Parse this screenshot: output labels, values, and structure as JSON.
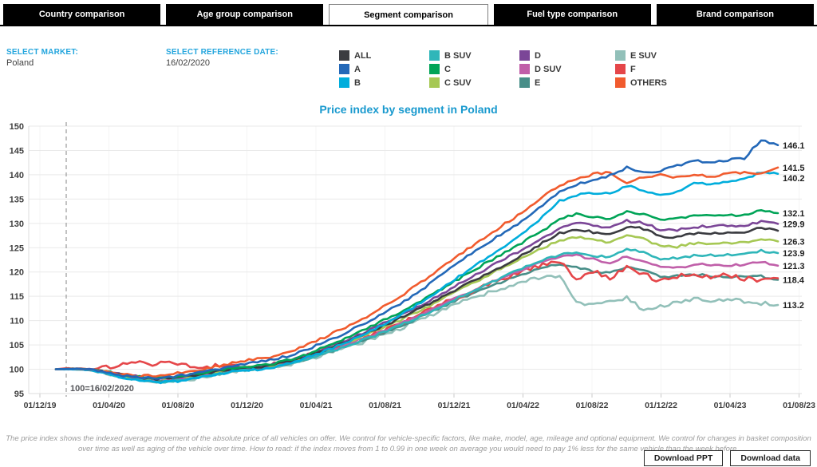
{
  "tabs": [
    {
      "label": "Country comparison",
      "active": false
    },
    {
      "label": "Age group comparison",
      "active": false
    },
    {
      "label": "Segment comparison",
      "active": true
    },
    {
      "label": "Fuel type comparison",
      "active": false
    },
    {
      "label": "Brand comparison",
      "active": false
    }
  ],
  "filters": {
    "market_label": "SELECT MARKET:",
    "market_value": "Poland",
    "date_label": "SELECT REFERENCE DATE:",
    "date_value": "16/02/2020"
  },
  "title": "Price index by segment in Poland",
  "chart_data": {
    "type": "line",
    "title": "Price index by segment in Poland",
    "x_tick_labels": [
      "01/12/19",
      "01/04/20",
      "01/08/20",
      "01/12/20",
      "01/04/21",
      "01/08/21",
      "01/12/21",
      "01/04/22",
      "01/08/22",
      "01/12/22",
      "01/04/23",
      "01/08/23"
    ],
    "y_ticks": [
      95,
      100,
      105,
      110,
      115,
      120,
      125,
      130,
      135,
      140,
      145,
      150
    ],
    "ylim": [
      95,
      150
    ],
    "grid": true,
    "legend_position": "top",
    "series_sampling": "monthly, Dec-2019 to Jul-2023 (values read from chart)",
    "reference_line": {
      "label": "100=16/02/2020",
      "value": 100,
      "date": "16/02/2020"
    },
    "end_labels_visible": [
      "146.1",
      "141.5",
      "140.2",
      "132.1",
      "129.9",
      "126.3",
      "123.9",
      "121.3",
      "118.4",
      "113.2"
    ],
    "draw_order": [
      "E SUV",
      "E",
      "F",
      "D SUV",
      "B SUV",
      "C SUV",
      "D",
      "ALL",
      "C",
      "B",
      "OTHERS",
      "A"
    ],
    "series": [
      {
        "name": "ALL",
        "color": "#3b3c41",
        "end_label": null,
        "values": [
          100,
          100.1,
          100,
          99.4,
          98.8,
          98.3,
          98,
          98.2,
          98.6,
          99.2,
          99.8,
          100.3,
          100.4,
          100.9,
          101.7,
          102.7,
          104,
          105.3,
          106.7,
          108.2,
          109.7,
          111.3,
          113,
          114.8,
          116.6,
          118.4,
          120.2,
          122,
          123.8,
          126,
          128,
          128.8,
          128.2,
          127.7,
          129.3,
          128.9,
          127.3,
          127.2,
          127.9,
          128,
          128.1,
          128.3,
          129.2,
          128.5
        ]
      },
      {
        "name": "A",
        "color": "#2368b8",
        "end_label": "146.1",
        "values": [
          100,
          100.1,
          100,
          99.4,
          98.7,
          98.3,
          98.2,
          98.5,
          99,
          99.6,
          100.3,
          101,
          101.4,
          102,
          102.9,
          104.1,
          105.6,
          107.1,
          108.7,
          110.5,
          112.4,
          114.5,
          116.9,
          119.4,
          122,
          124.3,
          126.6,
          128.8,
          131,
          133.8,
          136.5,
          138,
          139,
          139.8,
          141.5,
          140.5,
          140.8,
          141.9,
          142.8,
          142.6,
          143,
          143.4,
          147.2,
          146.1
        ]
      },
      {
        "name": "B",
        "color": "#00addc",
        "end_label": "140.2",
        "values": [
          100,
          100,
          99.9,
          99.2,
          98.3,
          97.7,
          97.3,
          97.5,
          97.9,
          98.5,
          99.2,
          99.8,
          100,
          100.5,
          101.3,
          102.4,
          103.7,
          105.1,
          106.6,
          108.3,
          110.1,
          112.1,
          114.3,
          116.6,
          119,
          121.3,
          123.7,
          126,
          128.3,
          131.5,
          134.6,
          135.8,
          136.3,
          136,
          137.8,
          136.5,
          135.9,
          136.6,
          138.3,
          138.1,
          138.4,
          139,
          140.6,
          140.2
        ]
      },
      {
        "name": "B SUV",
        "color": "#2fb6b9",
        "end_label": "123.9",
        "values": [
          100,
          100,
          99.9,
          99.2,
          98.4,
          97.8,
          97.4,
          97.6,
          98,
          98.6,
          99.3,
          99.9,
          100.1,
          100.5,
          101.2,
          102.1,
          103.2,
          104.4,
          105.6,
          106.9,
          108.3,
          109.8,
          111.4,
          113,
          114.7,
          116.3,
          118,
          119.6,
          121.2,
          122.5,
          123.5,
          124,
          123.4,
          123,
          124.8,
          124,
          122.7,
          122.8,
          123.4,
          123.4,
          123.5,
          123.6,
          124.4,
          123.9
        ]
      },
      {
        "name": "C",
        "color": "#00a457",
        "end_label": "132.1",
        "values": [
          100,
          100.1,
          100,
          99.5,
          98.9,
          98.4,
          98.2,
          98.4,
          98.8,
          99.4,
          100,
          100.5,
          100.7,
          101.2,
          102,
          103.1,
          104.5,
          106,
          107.5,
          109.2,
          110.9,
          112.7,
          114.6,
          116.6,
          118.6,
          120.6,
          122.6,
          124.6,
          126.5,
          128.6,
          130.8,
          132,
          131.4,
          130.9,
          132.4,
          132,
          130.8,
          130.9,
          131.5,
          131.5,
          131.6,
          131.8,
          132.8,
          132.1
        ]
      },
      {
        "name": "C SUV",
        "color": "#a6c854",
        "end_label": "126.3",
        "values": [
          100,
          100.1,
          100,
          99.5,
          98.8,
          98.3,
          98.1,
          98.3,
          98.7,
          99.2,
          99.8,
          100.3,
          100.5,
          100.9,
          101.6,
          102.6,
          103.8,
          105.1,
          106.4,
          107.8,
          109.3,
          110.9,
          112.6,
          114.4,
          116.2,
          118,
          119.8,
          121.6,
          123.3,
          125,
          126.4,
          127.2,
          126.6,
          126,
          127.4,
          126.9,
          125.3,
          125.2,
          125.9,
          126,
          126,
          126.1,
          126.9,
          126.3
        ]
      },
      {
        "name": "D",
        "color": "#7b4697",
        "end_label": "129.9",
        "values": [
          100,
          100.1,
          100,
          99.5,
          98.9,
          98.4,
          98.1,
          98.3,
          98.7,
          99.3,
          99.9,
          100.4,
          100.5,
          101,
          101.8,
          102.9,
          104.2,
          105.6,
          107,
          108.6,
          110.2,
          111.9,
          113.7,
          115.6,
          117.5,
          119.4,
          121.3,
          123.2,
          125,
          127,
          129,
          130.2,
          129.6,
          129,
          130.5,
          130.1,
          128.7,
          128.6,
          129.3,
          129.4,
          129.5,
          129.6,
          130.4,
          129.9
        ]
      },
      {
        "name": "D SUV",
        "color": "#c05fa9",
        "end_label": "121.3",
        "values": [
          100,
          100,
          99.9,
          99.3,
          98.6,
          98.1,
          97.9,
          98.1,
          98.5,
          99,
          99.7,
          100.2,
          100.4,
          100.8,
          101.5,
          102.4,
          103.5,
          104.7,
          105.9,
          107.2,
          108.6,
          110.1,
          111.7,
          113.3,
          115,
          116.5,
          118,
          119.5,
          120.9,
          122.1,
          123.1,
          123.4,
          122.6,
          122,
          123.2,
          122.4,
          120.9,
          120.8,
          121.5,
          121.5,
          121.4,
          121.5,
          122.1,
          121.3
        ]
      },
      {
        "name": "E",
        "color": "#478e88",
        "end_label": "118.4",
        "values": [
          100,
          100,
          99.9,
          99.2,
          98.5,
          97.9,
          97.6,
          97.8,
          98.2,
          98.8,
          99.4,
          100,
          100.2,
          100.6,
          101.3,
          102.2,
          103.3,
          104.4,
          105.6,
          106.8,
          108.2,
          109.6,
          111.2,
          112.8,
          114.4,
          115.8,
          117.2,
          118.6,
          119.8,
          120.8,
          121.6,
          121,
          120.2,
          119.8,
          121.2,
          120.3,
          119,
          119.2,
          119.6,
          119.2,
          119,
          118.9,
          119.1,
          118.4
        ]
      },
      {
        "name": "E SUV",
        "color": "#92c0b9",
        "end_label": "113.2",
        "values": [
          100,
          100,
          99.9,
          99.1,
          98.2,
          97.6,
          97.3,
          97.5,
          97.9,
          98.5,
          99.2,
          99.8,
          100,
          100.4,
          101.1,
          102,
          103,
          104.1,
          105.2,
          106.4,
          107.7,
          109.1,
          110.6,
          112.1,
          113.6,
          114.8,
          116,
          117.2,
          118.2,
          118.9,
          119.3,
          113.9,
          113.2,
          113.9,
          114.8,
          112.1,
          112.9,
          113.7,
          114.5,
          113.9,
          114.3,
          114,
          113.6,
          113.2
        ]
      },
      {
        "name": "F",
        "color": "#e54649",
        "end_label": null,
        "values": [
          100,
          100.2,
          100,
          100.4,
          100.9,
          101.3,
          101,
          101.4,
          100.8,
          100.4,
          101.1,
          100.6,
          100.3,
          100.9,
          101.7,
          102.7,
          103.8,
          104.9,
          106,
          107.3,
          108.7,
          110.2,
          111.8,
          113.4,
          115,
          116.4,
          117.8,
          119.2,
          120.4,
          121.5,
          122.3,
          118.3,
          120.2,
          118.6,
          121.3,
          119.5,
          118.2,
          119,
          119.8,
          118.9,
          119.3,
          118.7,
          118.1,
          118.7
        ]
      },
      {
        "name": "OTHERS",
        "color": "#f15b2e",
        "end_label": "141.5",
        "values": [
          100,
          100.1,
          100,
          99.5,
          98.9,
          98.6,
          98.7,
          99.1,
          99.5,
          100.1,
          100.9,
          101.6,
          102.1,
          102.7,
          103.7,
          105,
          106.6,
          108.2,
          109.9,
          111.8,
          113.9,
          116.1,
          118.5,
          121,
          123.5,
          125.8,
          128.2,
          130.5,
          132.7,
          135.5,
          137.9,
          139.2,
          140.1,
          140.6,
          138.3,
          139.6,
          139.9,
          139.4,
          140.1,
          139.7,
          140.1,
          140.6,
          140.2,
          141.5
        ]
      }
    ]
  },
  "footer": {
    "note": "The price index shows the indexed average movement of the absolute price of all vehicles on offer. We control for vehicle-specific factors, like make, model, age, mileage and optional equipment. We control for changes in basket composition over time as well as aging of the vehicle over time. How to read: if the index moves from 1 to 0.99 in one week on average you would need to pay 1% less for the same vehicle than the week before.",
    "download_ppt": "Download PPT",
    "download_data": "Download data"
  }
}
